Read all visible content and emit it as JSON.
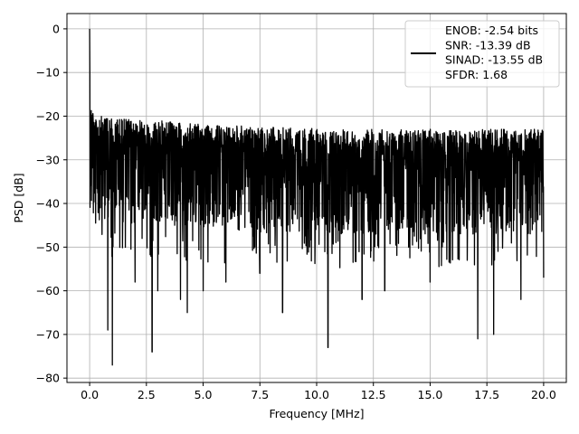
{
  "chart_data": {
    "type": "line",
    "title": "",
    "xlabel": "Frequency [MHz]",
    "ylabel": "PSD [dB]",
    "xlim": [
      -1.0,
      21.0
    ],
    "ylim": [
      -81,
      3.5
    ],
    "xticks": [
      0.0,
      2.5,
      5.0,
      7.5,
      10.0,
      12.5,
      15.0,
      17.5,
      20.0
    ],
    "xtick_labels": [
      "0.0",
      "2.5",
      "5.0",
      "7.5",
      "10.0",
      "12.5",
      "15.0",
      "17.5",
      "20.0"
    ],
    "yticks": [
      0,
      -10,
      -20,
      -30,
      -40,
      -50,
      -60,
      -70,
      -80
    ],
    "ytick_labels": [
      "0",
      "−10",
      "−20",
      "−30",
      "−40",
      "−50",
      "−60",
      "−70",
      "−80"
    ],
    "grid": true,
    "legend_position": "upper right",
    "series": [
      {
        "name": "ENOB: -2.54 bits\nSNR: -13.39 dB\nSINAD: -13.55 dB\nSFDR: 1.68",
        "color": "#000000",
        "description": "PSD noise spectrum, approx. 0–20 MHz, dense noise band",
        "x": [
          0.0,
          0.02,
          0.05,
          0.1,
          0.2,
          0.3,
          0.5,
          0.8,
          1.0,
          1.5,
          2.0,
          2.75,
          3.0,
          4.0,
          4.3,
          5.0,
          6.0,
          7.5,
          8.5,
          10.5,
          12.0,
          13.0,
          15.0,
          17.1,
          17.8,
          19.0,
          20.0
        ],
        "upper": [
          0.0,
          -14,
          -17,
          -18,
          -19,
          -19.5,
          -20,
          -20,
          -20.5,
          -20.5,
          -21,
          -21,
          -21,
          -21.5,
          -21.5,
          -22,
          -22,
          -22.5,
          -22.5,
          -23,
          -23,
          -23,
          -23,
          -23,
          -23,
          -23,
          -23
        ],
        "lower": [
          -28,
          -34,
          -38,
          -42,
          -45,
          -47,
          -52,
          -69,
          -77,
          -55,
          -58,
          -74,
          -60,
          -62,
          -65,
          -60,
          -58,
          -56,
          -65,
          -73,
          -62,
          -60,
          -58,
          -71,
          -70,
          -62,
          -57
        ],
        "band_low_typical": -50
      }
    ],
    "legend": {
      "lines": [
        "ENOB: -2.54 bits",
        "SNR: -13.39 dB",
        "SINAD: -13.55 dB",
        "SFDR: 1.68"
      ]
    }
  }
}
